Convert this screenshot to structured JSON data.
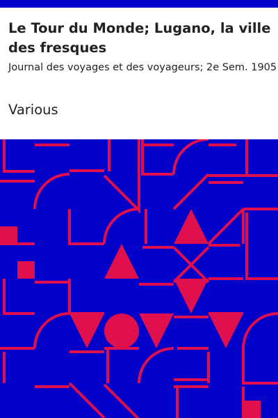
{
  "cover": {
    "title": "Le Tour du Monde; Lugano, la ville des fresques",
    "subtitle": "Journal des voyages et des voyageurs; 2e Sem. 1905",
    "author": "Various"
  },
  "colors": {
    "background": "#ffffff",
    "art_background": "#0000c8",
    "art_pattern": "#e0104f",
    "text": "#222222"
  }
}
